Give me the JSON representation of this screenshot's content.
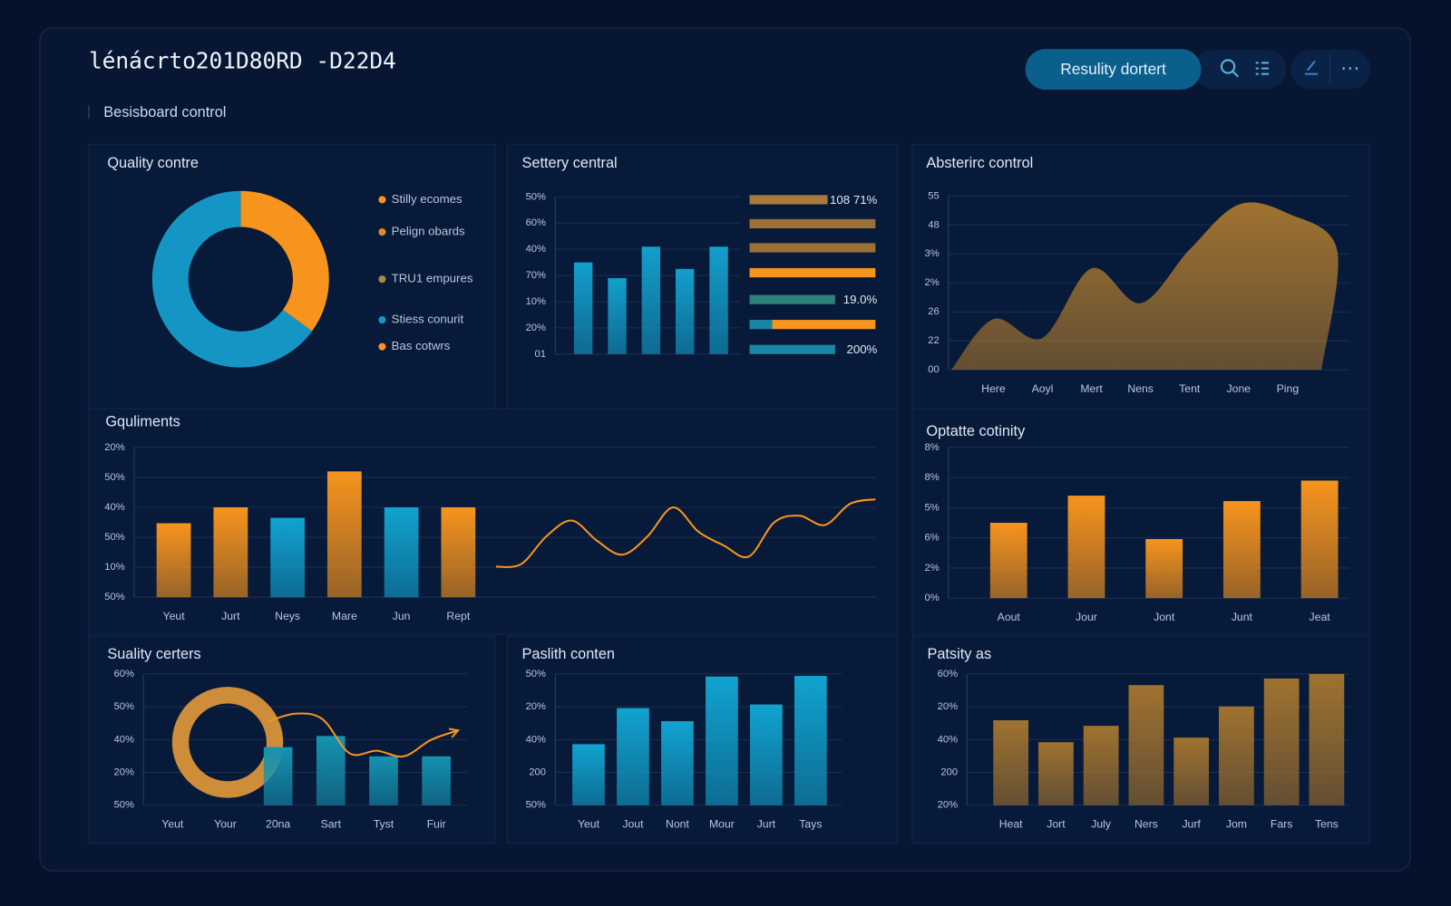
{
  "header": {
    "title": "lénácrto201D80RD -D22D4",
    "subtitle": "Besisboard control",
    "button": "Resulity dortert"
  },
  "chart_data": [
    {
      "type": "donut",
      "title": "Quality contre",
      "values": [
        35,
        65
      ],
      "colors": [
        "#f7941d",
        "#1595c4"
      ],
      "legend": [
        {
          "name": "Stilly ecomes",
          "color": "#f7941d"
        },
        {
          "name": "Pelign obards",
          "color": "#e08a2a"
        },
        {
          "name": "TRU1 empures",
          "color": "#a88a45"
        },
        {
          "name": "Stiess conurit",
          "color": "#1595c4"
        },
        {
          "name": "Bas cotwrs",
          "color": "#f7941d"
        }
      ]
    },
    {
      "type": "bar",
      "title": "Settery central",
      "values": [
        3.5,
        2.9,
        4.1,
        3.25,
        4.1
      ],
      "color": "#139fcb",
      "ylim": [
        0,
        6
      ],
      "yticks": [
        {
          "value": 0,
          "label": "01"
        },
        {
          "value": 1,
          "label": "20%"
        },
        {
          "value": 2,
          "label": "10%"
        },
        {
          "value": 3,
          "label": "70%"
        },
        {
          "value": 4,
          "label": "40%"
        },
        {
          "value": 5,
          "label": "60%"
        },
        {
          "value": 6,
          "label": "50%"
        }
      ],
      "progress": [
        {
          "values": [
            62
          ],
          "colors": [
            "#a87a3c"
          ],
          "label": "108 71%"
        },
        {
          "values": [
            100
          ],
          "colors": [
            "#9a7036"
          ]
        },
        {
          "values": [
            100
          ],
          "colors": [
            "#9a7036"
          ]
        },
        {
          "values": [
            100
          ],
          "colors": [
            "#f7941d"
          ]
        },
        {
          "values": [
            68
          ],
          "colors": [
            "#2f7f7a"
          ],
          "label": "19.0%"
        },
        {
          "values": [
            18,
            82
          ],
          "colors": [
            "#1a86a6",
            "#f7941d"
          ]
        },
        {
          "values": [
            68
          ],
          "colors": [
            "#1a86a6"
          ],
          "label": "200%"
        }
      ]
    },
    {
      "type": "area",
      "title": "Absterirc control",
      "categories": [
        "Here",
        "Aoyl",
        "Mert",
        "Nens",
        "Tent",
        "Jone",
        "Ping"
      ],
      "values": [
        1.75,
        1.1,
        3.5,
        2.3,
        4.15,
        5.7,
        5.4
      ],
      "color": "#a0722f",
      "ylim": [
        0,
        6
      ],
      "yticks": [
        {
          "value": 0,
          "label": "00"
        },
        {
          "value": 1,
          "label": "22"
        },
        {
          "value": 2,
          "label": "26"
        },
        {
          "value": 3,
          "label": "2%"
        },
        {
          "value": 4,
          "label": "3%"
        },
        {
          "value": 5,
          "label": "48"
        },
        {
          "value": 6,
          "label": "55"
        }
      ]
    },
    {
      "type": "combo",
      "title": "Gquliments",
      "categories": [
        "Yeut",
        "Jurt",
        "Neys",
        "Mare",
        "Jun",
        "Rept"
      ],
      "values": [
        2.47,
        3.0,
        2.65,
        4.2,
        3.0,
        3.0
      ],
      "colors": [
        "#f7941d",
        "#f7941d",
        "#11a3cf",
        "#f7941d",
        "#11a3cf",
        "#f7941d"
      ],
      "line_values": [
        1.02,
        1.11,
        2.04,
        2.56,
        1.88,
        1.42,
        2.04,
        3.0,
        2.19,
        1.73,
        1.36,
        2.5,
        2.72,
        2.41,
        3.12,
        3.27
      ],
      "line_color": "#f7941d",
      "ylim": [
        0,
        5
      ],
      "yticks": [
        {
          "value": 0,
          "label": "50%"
        },
        {
          "value": 1,
          "label": "10%"
        },
        {
          "value": 2,
          "label": "50%"
        },
        {
          "value": 3,
          "label": "40%"
        },
        {
          "value": 4,
          "label": "50%"
        },
        {
          "value": 5,
          "label": "20%"
        }
      ]
    },
    {
      "type": "bar",
      "title": "Optatte cotinity",
      "categories": [
        "Aout",
        "Jour",
        "Jont",
        "Junt",
        "Jeat"
      ],
      "values": [
        2.5,
        3.4,
        1.96,
        3.22,
        3.9
      ],
      "color": "#f7941d",
      "ylim": [
        0,
        5
      ],
      "yticks": [
        {
          "value": 0,
          "label": "0%"
        },
        {
          "value": 1,
          "label": "2%"
        },
        {
          "value": 2,
          "label": "6%"
        },
        {
          "value": 3,
          "label": "5%"
        },
        {
          "value": 4,
          "label": "8%"
        },
        {
          "value": 5,
          "label": "8%"
        }
      ]
    },
    {
      "type": "combo",
      "title": "Suality certers",
      "categories": [
        "Yeut",
        "Your",
        "20na",
        "Sart",
        "Tyst",
        "Fuir"
      ],
      "values": [
        null,
        null,
        1.77,
        2.11,
        1.49,
        1.49
      ],
      "color": "#1592b0",
      "line_values": [
        2.56,
        2.79,
        2.62,
        1.58,
        1.66,
        1.49,
        1.99,
        2.28
      ],
      "line_color": "#f7941d",
      "ylim": [
        0,
        4
      ],
      "yticks": [
        {
          "value": 0,
          "label": "50%"
        },
        {
          "value": 1,
          "label": "20%"
        },
        {
          "value": 2,
          "label": "40%"
        },
        {
          "value": 3,
          "label": "50%"
        },
        {
          "value": 4,
          "label": "60%"
        }
      ]
    },
    {
      "type": "bar",
      "title": "Paslith conten",
      "categories": [
        "Yeut",
        "Jout",
        "Nont",
        "Mour",
        "Jurt",
        "Tays"
      ],
      "values": [
        1.86,
        2.96,
        2.56,
        3.92,
        3.07,
        3.94
      ],
      "color": "#11a3cf",
      "ylim": [
        0,
        4
      ],
      "yticks": [
        {
          "value": 0,
          "label": "50%"
        },
        {
          "value": 1,
          "label": "200"
        },
        {
          "value": 2,
          "label": "40%"
        },
        {
          "value": 3,
          "label": "20%"
        },
        {
          "value": 4,
          "label": "50%"
        }
      ]
    },
    {
      "type": "bar",
      "title": "Patsity as",
      "categories": [
        "Heat",
        "Jort",
        "July",
        "Ners",
        "Jurf",
        "Jom",
        "Fars",
        "Tens"
      ],
      "values": [
        2.59,
        1.92,
        2.42,
        3.66,
        2.06,
        3.01,
        3.86,
        4.0
      ],
      "color": "#a0722f",
      "ylim": [
        0,
        4
      ],
      "yticks": [
        {
          "value": 0,
          "label": "20%"
        },
        {
          "value": 1,
          "label": "200"
        },
        {
          "value": 2,
          "label": "40%"
        },
        {
          "value": 3,
          "label": "20%"
        },
        {
          "value": 4,
          "label": "60%"
        }
      ]
    }
  ]
}
